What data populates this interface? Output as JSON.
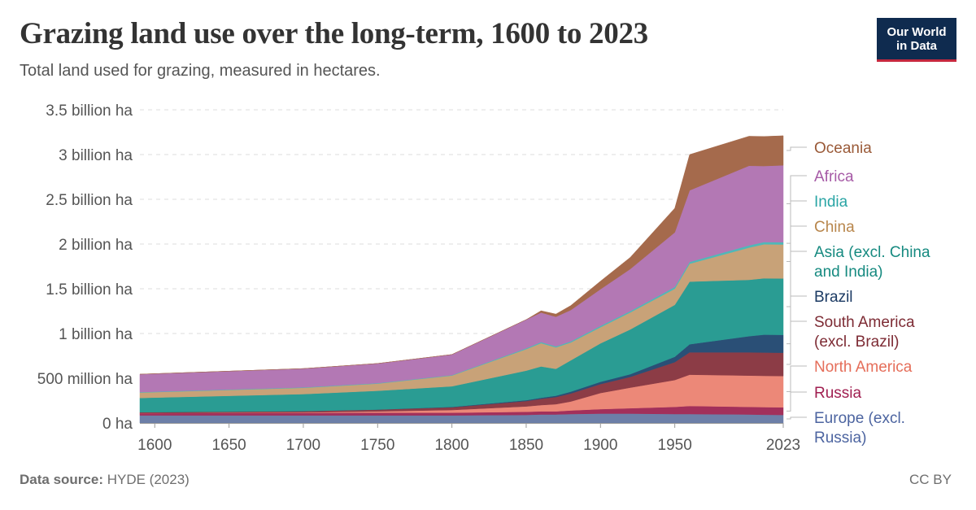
{
  "title": "Grazing land use over the long-term, 1600 to 2023",
  "subtitle": "Total land used for grazing, measured in hectares.",
  "logo": {
    "line1": "Our World",
    "line2": "in Data",
    "bg": "#0f2b4f",
    "accent": "#c6283e"
  },
  "footer": {
    "source_label": "Data source:",
    "source_value": "HYDE (2023)",
    "license": "CC BY"
  },
  "chart_data": {
    "type": "area",
    "stacked": true,
    "grid": "horizontal dashed",
    "legend_placement": "right",
    "x_unit": "year",
    "ylim": [
      0,
      3500000000
    ],
    "x_ticks": [
      1600,
      1650,
      1700,
      1750,
      1800,
      1850,
      1900,
      1950,
      2023
    ],
    "x_tick_labels": [
      "1600",
      "1650",
      "1700",
      "1750",
      "1800",
      "1850",
      "1900",
      "1950",
      "2023"
    ],
    "y_ticks": [
      0,
      500000000,
      1000000000,
      1500000000,
      2000000000,
      2500000000,
      3000000000,
      3500000000
    ],
    "y_tick_labels": [
      "0 ha",
      "500 million ha",
      "1 billion ha",
      "1.5 billion ha",
      "2 billion ha",
      "2.5 billion ha",
      "3 billion ha",
      "3.5 billion ha"
    ],
    "x": [
      1590,
      1700,
      1750,
      1800,
      1850,
      1860,
      1870,
      1880,
      1900,
      1920,
      1950,
      1960,
      2000,
      2010,
      2023
    ],
    "series": [
      {
        "name": "Europe (excl. Russia)",
        "color": "#6d7fa8",
        "values": [
          85,
          85,
          85,
          85,
          90,
          95,
          95,
          100,
          105,
          105,
          100,
          100,
          95,
          92,
          90
        ]
      },
      {
        "name": "Russia",
        "color": "#a2305b",
        "values": [
          25,
          28,
          30,
          30,
          35,
          35,
          35,
          40,
          50,
          60,
          80,
          90,
          85,
          85,
          85
        ]
      },
      {
        "name": "North America",
        "color": "#ec8878",
        "values": [
          0,
          5,
          15,
          30,
          60,
          70,
          80,
          100,
          180,
          230,
          300,
          350,
          350,
          350,
          350
        ]
      },
      {
        "name": "South America (excl. Brazil)",
        "color": "#8c3c46",
        "values": [
          10,
          15,
          20,
          30,
          60,
          70,
          80,
          90,
          100,
          120,
          200,
          250,
          260,
          260,
          260
        ]
      },
      {
        "name": "Brazil",
        "color": "#2a4f76",
        "values": [
          0,
          0,
          0,
          5,
          10,
          12,
          15,
          20,
          25,
          30,
          60,
          90,
          180,
          200,
          200
        ]
      },
      {
        "name": "Asia (excl. China and India)",
        "color": "#2a9c93",
        "values": [
          160,
          190,
          210,
          230,
          330,
          350,
          300,
          350,
          430,
          500,
          580,
          700,
          630,
          630,
          630
        ]
      },
      {
        "name": "China",
        "color": "#c8a278",
        "values": [
          60,
          70,
          80,
          120,
          240,
          260,
          240,
          200,
          180,
          190,
          180,
          200,
          360,
          380,
          380
        ]
      },
      {
        "name": "India",
        "color": "#4fb8b8",
        "values": [
          5,
          5,
          5,
          5,
          10,
          12,
          12,
          12,
          15,
          15,
          20,
          20,
          25,
          25,
          25
        ]
      },
      {
        "name": "Africa",
        "color": "#b378b4",
        "values": [
          200,
          210,
          220,
          230,
          320,
          330,
          330,
          350,
          410,
          470,
          610,
          800,
          890,
          850,
          860
        ]
      },
      {
        "name": "Oceania",
        "color": "#a56a4c",
        "values": [
          0,
          0,
          0,
          0,
          0,
          20,
          30,
          50,
          90,
          130,
          270,
          400,
          330,
          330,
          330
        ]
      }
    ],
    "values_unit": "million ha"
  }
}
